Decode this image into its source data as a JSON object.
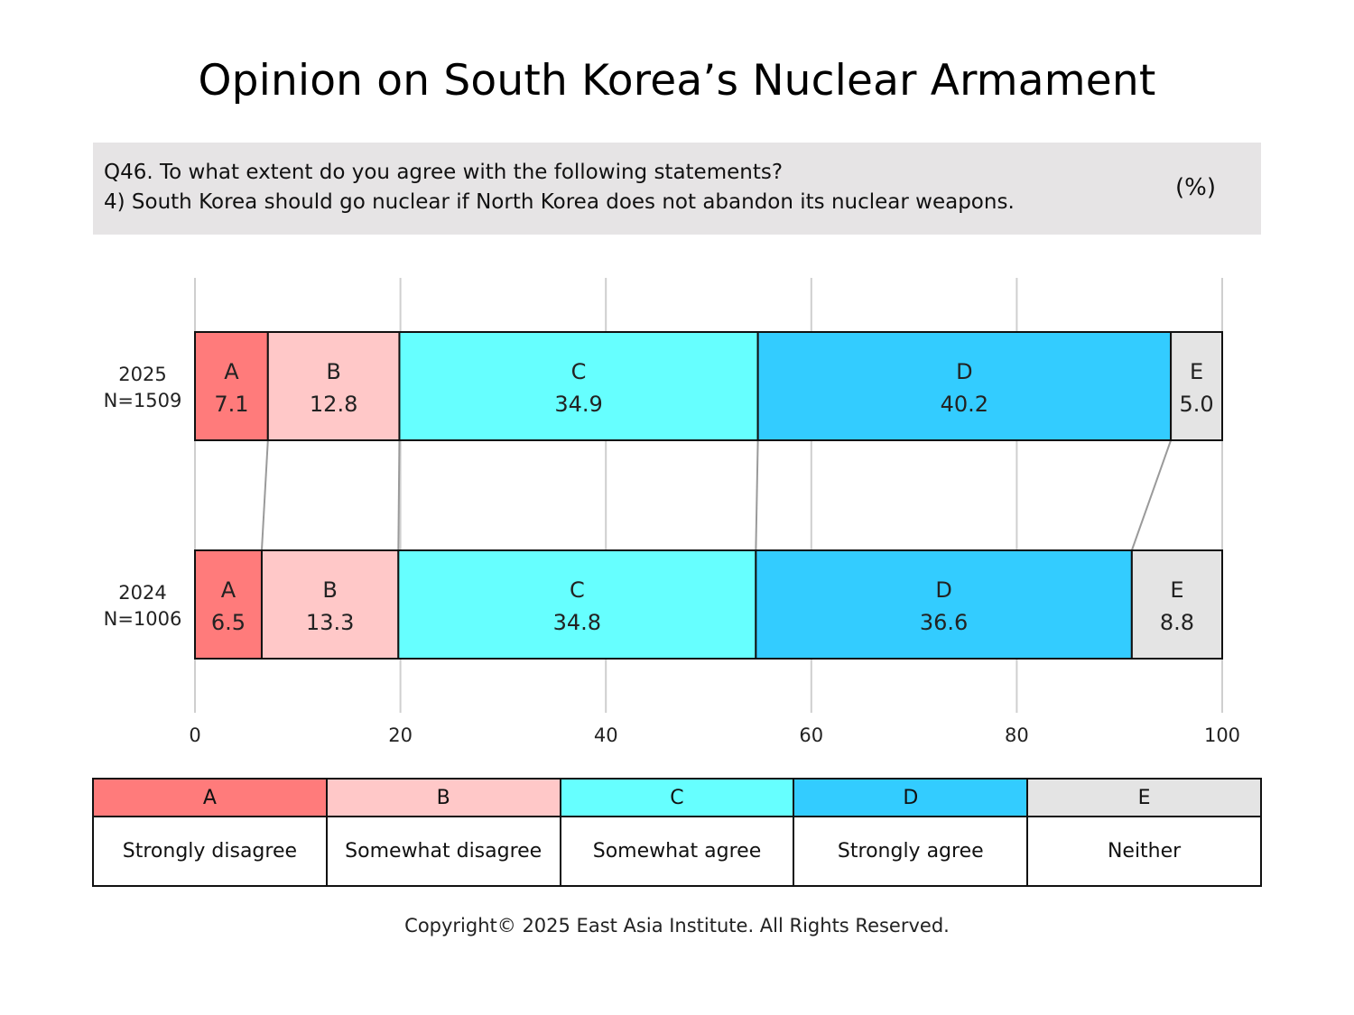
{
  "title": "Opinion on South Korea’s Nuclear Armament",
  "question": {
    "line1": "Q46. To what extent do you agree with the following statements?",
    "line2": "4) South Korea should go nuclear if North Korea does not abandon its nuclear weapons.",
    "unit": "(%)"
  },
  "chart_data": {
    "type": "bar",
    "orientation": "horizontal",
    "stacked": true,
    "categories": [
      "A",
      "B",
      "C",
      "D",
      "E"
    ],
    "category_colors": [
      "#ff7b7b",
      "#ffc8c8",
      "#66ffff",
      "#33ccff",
      "#e4e4e4"
    ],
    "rows": [
      {
        "year": "2025",
        "n": "N=1509",
        "values": [
          7.1,
          12.8,
          34.9,
          40.2,
          5.0
        ]
      },
      {
        "year": "2024",
        "n": "N=1006",
        "values": [
          6.5,
          13.3,
          34.8,
          36.6,
          8.8
        ]
      }
    ],
    "xlim": [
      0,
      100
    ],
    "xticks": [
      0,
      20,
      40,
      60,
      80,
      100
    ],
    "grid": true,
    "value_decimals": 1
  },
  "legend": {
    "items": [
      {
        "code": "A",
        "label": "Strongly disagree",
        "color": "#ff7b7b"
      },
      {
        "code": "B",
        "label": "Somewhat disagree",
        "color": "#ffc8c8"
      },
      {
        "code": "C",
        "label": "Somewhat agree",
        "color": "#66ffff"
      },
      {
        "code": "D",
        "label": "Strongly agree",
        "color": "#33ccff"
      },
      {
        "code": "E",
        "label": "Neither",
        "color": "#e4e4e4"
      }
    ]
  },
  "copyright": "Copyright© 2025 East Asia Institute. All Rights Reserved."
}
